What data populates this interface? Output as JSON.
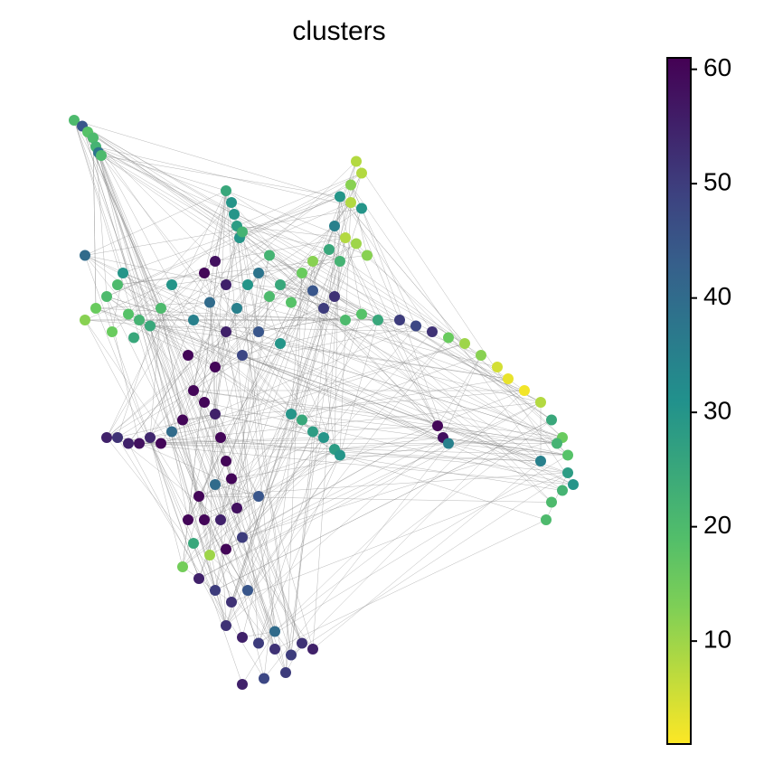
{
  "chart_data": {
    "type": "scatter",
    "title": "clusters",
    "cmap": "viridis_r",
    "xlim": [
      0,
      100
    ],
    "ylim": [
      0,
      100
    ],
    "clim": [
      1,
      61
    ],
    "cticks": [
      10,
      20,
      30,
      40,
      50,
      60
    ],
    "x": [
      2,
      3.5,
      4.5,
      5.5,
      6,
      6.5,
      7,
      30,
      31,
      31.5,
      32,
      32.5,
      33,
      54,
      55,
      53,
      51,
      53,
      55,
      50,
      52,
      54,
      49,
      56,
      51,
      4,
      6,
      8,
      10,
      11,
      12,
      14,
      16,
      18,
      13,
      9,
      4,
      20,
      26,
      28,
      30,
      27,
      32,
      34,
      36,
      38,
      40,
      42,
      44,
      46,
      48,
      50,
      52,
      55,
      58,
      36,
      30,
      33,
      28,
      40,
      24,
      38,
      46,
      23,
      62,
      65,
      68,
      71,
      74,
      77,
      80,
      82,
      85,
      88,
      90,
      92,
      93,
      93,
      92,
      90,
      94,
      89,
      88,
      91,
      69,
      70,
      71,
      42,
      44,
      46,
      48,
      50,
      51,
      8,
      10,
      12,
      14,
      16,
      18,
      20,
      22,
      24,
      26,
      28,
      29,
      30,
      31,
      28,
      25,
      23,
      26,
      29,
      32,
      24,
      27,
      30,
      33,
      25,
      28,
      31,
      34,
      22,
      36,
      30,
      33,
      36,
      39,
      42,
      44,
      46,
      41,
      37,
      33,
      39
    ],
    "y": [
      98,
      97,
      96,
      95,
      93.5,
      92.5,
      92,
      86,
      84,
      82,
      80,
      78,
      79,
      91,
      89,
      87,
      85,
      84,
      83,
      80,
      78,
      77,
      76,
      75,
      74,
      64,
      66,
      68,
      70,
      72,
      65,
      64,
      63,
      66,
      61,
      62,
      75,
      70,
      72,
      74,
      70,
      67,
      66,
      70,
      72,
      68,
      70,
      67,
      72,
      69,
      66,
      68,
      64,
      65,
      64,
      62,
      62,
      58,
      56,
      60,
      64,
      75,
      74,
      58,
      64,
      63,
      62,
      61,
      60,
      58,
      56,
      54,
      52,
      50,
      47,
      44,
      41,
      38,
      35,
      33,
      36,
      30,
      40,
      43,
      46,
      44,
      43,
      48,
      47,
      45,
      44,
      42,
      41,
      44,
      44,
      43,
      43,
      44,
      43,
      45,
      47,
      52,
      50,
      48,
      44,
      40,
      37,
      36,
      34,
      30,
      30,
      30,
      32,
      26,
      24,
      25,
      27,
      20,
      18,
      16,
      18,
      22,
      34,
      12,
      10,
      9,
      8,
      7,
      9,
      8,
      4,
      3,
      2,
      11
    ],
    "values": [
      20,
      45,
      18,
      20,
      22,
      38,
      20,
      25,
      30,
      30,
      28,
      30,
      22,
      8,
      8,
      12,
      30,
      8,
      30,
      35,
      8,
      10,
      25,
      12,
      22,
      12,
      15,
      20,
      20,
      30,
      18,
      22,
      25,
      20,
      25,
      15,
      40,
      30,
      60,
      58,
      55,
      40,
      35,
      30,
      38,
      20,
      25,
      18,
      15,
      45,
      50,
      52,
      20,
      18,
      25,
      45,
      55,
      48,
      60,
      30,
      35,
      22,
      12,
      60,
      50,
      48,
      52,
      15,
      10,
      12,
      5,
      3,
      2,
      8,
      25,
      15,
      18,
      28,
      22,
      20,
      30,
      20,
      35,
      22,
      60,
      58,
      35,
      30,
      25,
      28,
      30,
      28,
      30,
      55,
      52,
      55,
      58,
      54,
      60,
      40,
      60,
      60,
      60,
      55,
      60,
      60,
      60,
      40,
      60,
      60,
      60,
      55,
      58,
      25,
      10,
      60,
      50,
      55,
      50,
      52,
      45,
      14,
      45,
      52,
      55,
      50,
      52,
      50,
      52,
      55,
      50,
      48,
      55,
      40
    ]
  }
}
